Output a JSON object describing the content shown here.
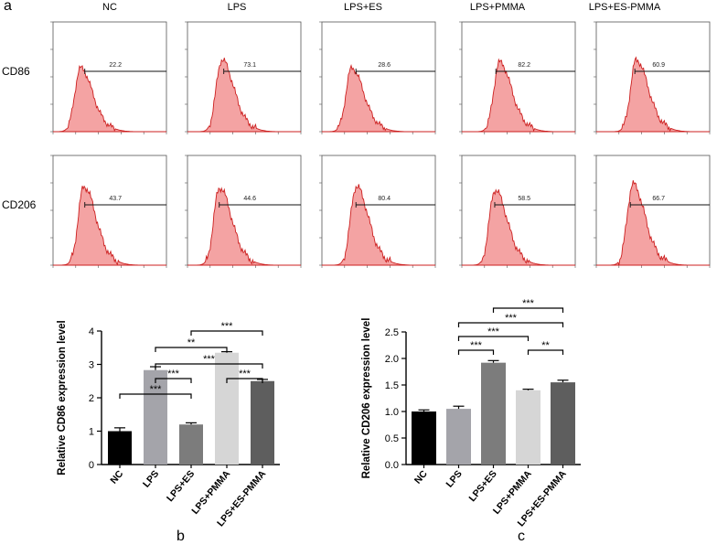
{
  "panel_labels": {
    "a": "a",
    "b": "b",
    "c": "c"
  },
  "flow": {
    "columns": [
      "NC",
      "LPS",
      "LPS+ES",
      "LPS+PMMA",
      "LPS+ES-PMMA"
    ],
    "rows": [
      {
        "name": "CD86",
        "gate_values": [
          "22.2",
          "73.1",
          "28.6",
          "82.2",
          "60.9"
        ]
      },
      {
        "name": "CD206",
        "gate_values": [
          "43.7",
          "44.6",
          "80.4",
          "58.5",
          "66.7"
        ]
      }
    ]
  },
  "chart_data": [
    {
      "type": "bar",
      "panel": "b",
      "categories": [
        "NC",
        "LPS",
        "LPS+ES",
        "LPS+PMMA",
        "LPS+ES-PMMA"
      ],
      "values": [
        1.0,
        2.83,
        1.2,
        3.35,
        2.5
      ],
      "errors": [
        0.1,
        0.1,
        0.05,
        0.03,
        0.05
      ],
      "colors": [
        "#000000",
        "#a4a4aa",
        "#7c7c7c",
        "#d6d6d6",
        "#5e5e5e"
      ],
      "title": "",
      "xlabel": "",
      "ylabel": "Relative CD86 expression level",
      "ylim": [
        0,
        4
      ],
      "yticks": [
        "0",
        "1",
        "2",
        "3",
        "4"
      ],
      "comparisons": [
        {
          "from": 0,
          "to": 2,
          "label": "***",
          "level": 1
        },
        {
          "from": 1,
          "to": 2,
          "label": "***",
          "level": 2
        },
        {
          "from": 3,
          "to": 4,
          "label": "***",
          "level": 2
        },
        {
          "from": 1,
          "to": 4,
          "label": "***",
          "level": 3
        },
        {
          "from": 1,
          "to": 3,
          "label": "**",
          "level": 4
        },
        {
          "from": 2,
          "to": 4,
          "label": "***",
          "level": 5
        }
      ]
    },
    {
      "type": "bar",
      "panel": "c",
      "categories": [
        "NC",
        "LPS",
        "LPS+ES",
        "LPS+PMMA",
        "LPS+ES-PMMA"
      ],
      "values": [
        1.0,
        1.05,
        1.92,
        1.4,
        1.55
      ],
      "errors": [
        0.03,
        0.05,
        0.04,
        0.02,
        0.04
      ],
      "colors": [
        "#000000",
        "#a4a4aa",
        "#7c7c7c",
        "#d6d6d6",
        "#5e5e5e"
      ],
      "title": "",
      "xlabel": "",
      "ylabel": "Relative CD206 expression level",
      "ylim": [
        0,
        2.5
      ],
      "yticks": [
        "0.0",
        "0.5",
        "1.0",
        "1.5",
        "2.0",
        "2.5"
      ],
      "comparisons": [
        {
          "from": 1,
          "to": 2,
          "label": "***",
          "level": 1
        },
        {
          "from": 3,
          "to": 4,
          "label": "**",
          "level": 1
        },
        {
          "from": 1,
          "to": 3,
          "label": "***",
          "level": 2
        },
        {
          "from": 1,
          "to": 4,
          "label": "***",
          "level": 3
        },
        {
          "from": 2,
          "to": 4,
          "label": "***",
          "level": 4
        }
      ]
    }
  ]
}
